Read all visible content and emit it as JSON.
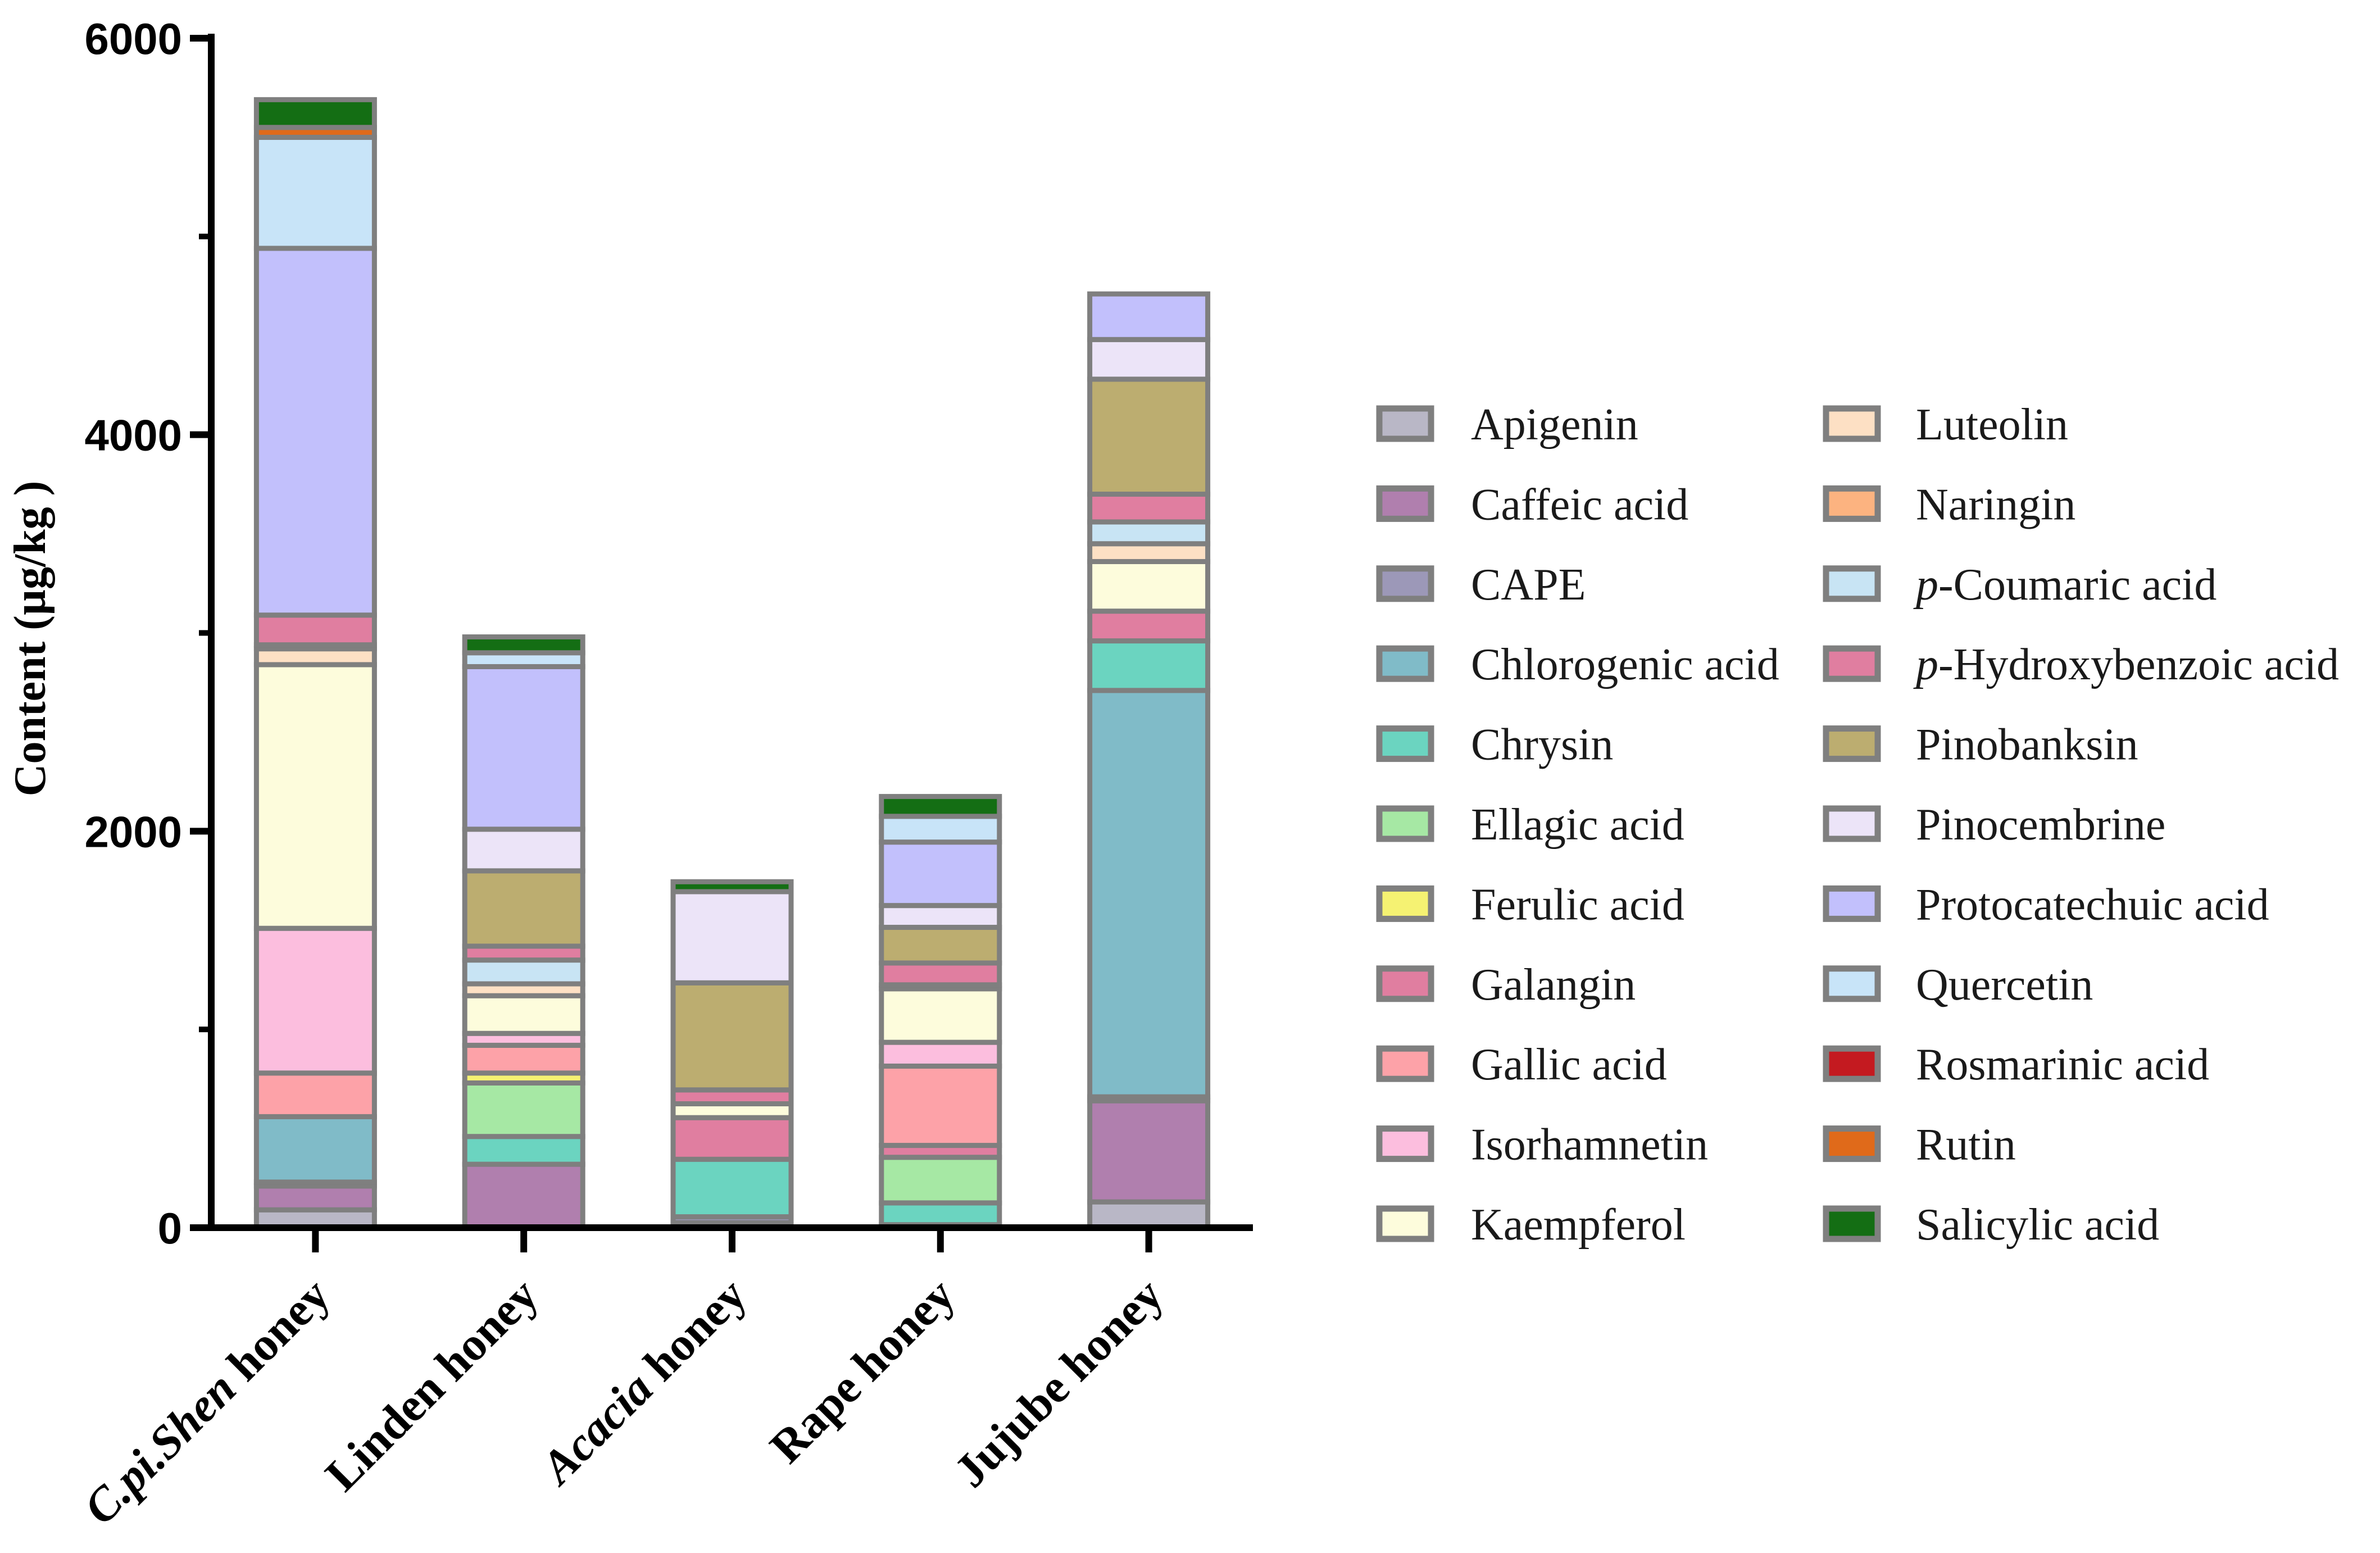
{
  "chart_data": {
    "type": "bar",
    "stacked": true,
    "title": "",
    "xlabel": "",
    "ylabel": "Content (µg/kg )",
    "ylim": [
      0,
      6000
    ],
    "yticks": [
      0,
      2000,
      4000,
      6000
    ],
    "categories": [
      {
        "parts": [
          {
            "text": "C.pi.Shen",
            "italic": true
          },
          {
            "text": " honey",
            "italic": false
          }
        ]
      },
      {
        "parts": [
          {
            "text": "Linden honey",
            "italic": false
          }
        ]
      },
      {
        "parts": [
          {
            "text": "Acacia",
            "italic": true
          },
          {
            "text": " honey",
            "italic": false
          }
        ]
      },
      {
        "parts": [
          {
            "text": "Rape honey",
            "italic": false
          }
        ]
      },
      {
        "parts": [
          {
            "text": "Jujube honey",
            "italic": false
          }
        ]
      }
    ],
    "legend_position": "right",
    "series": [
      {
        "name": "Apigenin",
        "color": "#b9b7c6",
        "values": [
          90,
          0,
          25,
          15,
          130
        ]
      },
      {
        "name": "Caffeic acid",
        "color": "#b07fae",
        "values": [
          120,
          320,
          0,
          0,
          510
        ]
      },
      {
        "name": "CAPE",
        "color": "#9c98b8",
        "values": [
          20,
          0,
          30,
          0,
          20
        ]
      },
      {
        "name": "Chlorogenic acid",
        "color": "#80bbc8",
        "values": [
          330,
          0,
          0,
          0,
          2050
        ]
      },
      {
        "name": "Chrysin",
        "color": "#6bd4c0",
        "values": [
          0,
          140,
          290,
          110,
          250
        ]
      },
      {
        "name": "Ellagic acid",
        "color": "#a6e8a4",
        "values": [
          0,
          270,
          0,
          230,
          0
        ]
      },
      {
        "name": "Ferulic acid",
        "color": "#f5f272",
        "values": [
          0,
          50,
          0,
          0,
          0
        ]
      },
      {
        "name": "Galangin",
        "color": "#e07ea0",
        "values": [
          0,
          0,
          210,
          60,
          150
        ]
      },
      {
        "name": "Gallic acid",
        "color": "#fda2a8",
        "values": [
          220,
          140,
          0,
          400,
          0
        ]
      },
      {
        "name": "Isorhamnetin",
        "color": "#fcbede",
        "values": [
          730,
          60,
          0,
          120,
          0
        ]
      },
      {
        "name": "Kaempferol",
        "color": "#fdfcdc",
        "values": [
          1330,
          190,
          70,
          270,
          250
        ]
      },
      {
        "name": "Luteolin",
        "color": "#fde0c4",
        "values": [
          80,
          60,
          0,
          0,
          90
        ]
      },
      {
        "name": "Naringin",
        "color": "#fcb380",
        "values": [
          0,
          0,
          0,
          0,
          0
        ]
      },
      {
        "name": "p-Coumaric acid",
        "color": "#c8e4f4",
        "values": [
          20,
          120,
          0,
          20,
          110
        ]
      },
      {
        "name": "p-Hydroxybenzoic acid",
        "color": "#e07ea0",
        "values": [
          150,
          70,
          70,
          110,
          140
        ]
      },
      {
        "name": "Pinobanksin",
        "color": "#bcad70",
        "values": [
          0,
          380,
          540,
          180,
          580
        ]
      },
      {
        "name": "Pinocembrine",
        "color": "#ece4f8",
        "values": [
          0,
          210,
          460,
          110,
          200
        ]
      },
      {
        "name": "Protocatechuic acid",
        "color": "#c2c0fc",
        "values": [
          1850,
          820,
          0,
          320,
          230
        ]
      },
      {
        "name": "Quercetin",
        "color": "#c8e4f8",
        "values": [
          560,
          70,
          0,
          130,
          0
        ]
      },
      {
        "name": "Rosmarinic acid",
        "color": "#c41a20",
        "values": [
          0,
          0,
          0,
          0,
          0
        ]
      },
      {
        "name": "Rutin",
        "color": "#e06a1a",
        "values": [
          50,
          0,
          0,
          0,
          0
        ]
      },
      {
        "name": "Salicylic acid",
        "color": "#146e14",
        "values": [
          140,
          80,
          50,
          100,
          0
        ]
      }
    ]
  }
}
